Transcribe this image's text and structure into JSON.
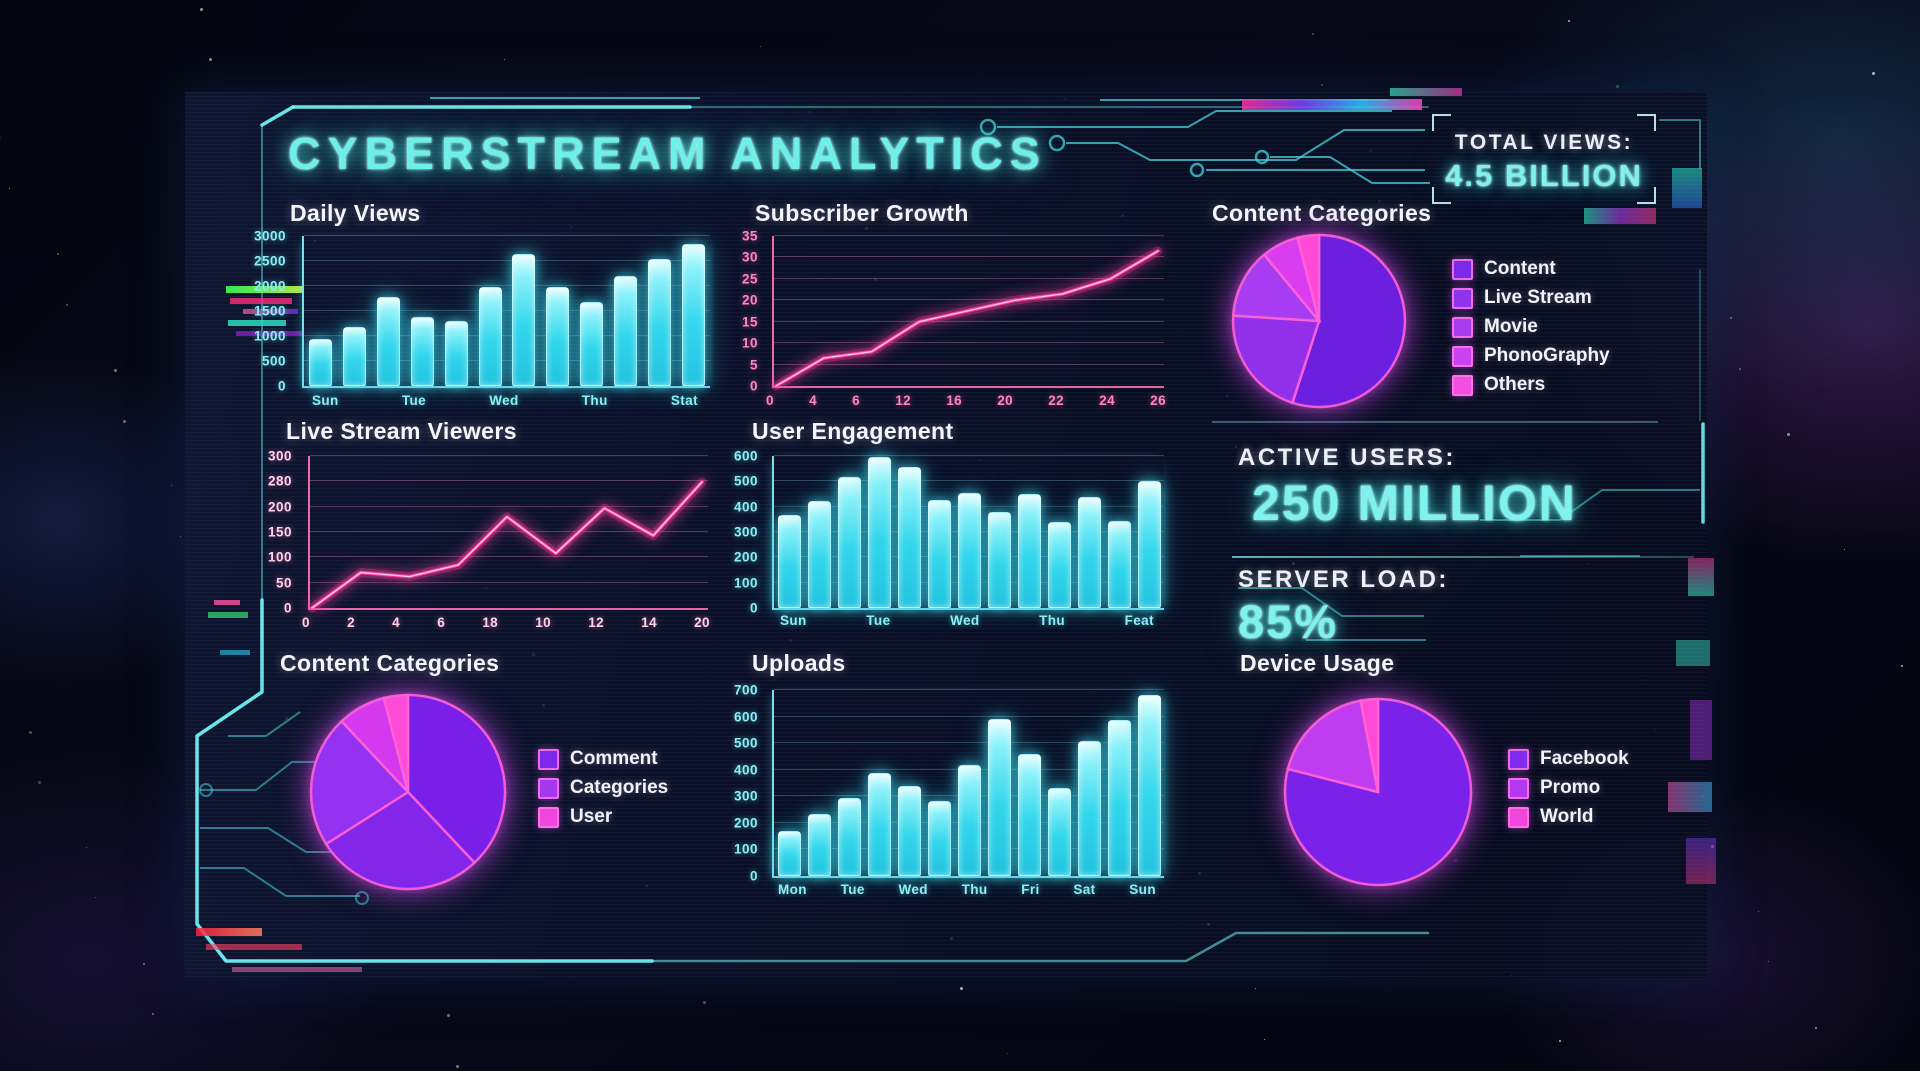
{
  "title": "CYBERSTREAM ANALYTICS",
  "stats": {
    "total_views_label": "TOTAL VIEWS:",
    "total_views_value": "4.5 BILLION",
    "active_users_label": "ACTIVE USERS:",
    "active_users_value": "250 MILLION",
    "server_load_label": "SERVER LOAD:",
    "server_load_value": "85%"
  },
  "chart_data": [
    {
      "id": "daily_views",
      "type": "bar",
      "title": "Daily Views",
      "ylim": [
        0,
        3000
      ],
      "yticks": [
        0,
        500,
        1000,
        1500,
        2000,
        2500,
        3000
      ],
      "xticks": [
        "Sun",
        "Tue",
        "Wed",
        "Thu",
        "Stat"
      ],
      "values": [
        900,
        1150,
        1750,
        1350,
        1250,
        1950,
        2600,
        1950,
        1650,
        2150,
        2500,
        2800
      ],
      "bar_color": "#33d7ec",
      "label_style": "cyan-lab",
      "axis": "cyan",
      "grid": true
    },
    {
      "id": "subscriber_growth",
      "type": "line",
      "title": "Subscriber Growth",
      "ylim": [
        0,
        35
      ],
      "yticks": [
        0,
        5,
        10,
        15,
        20,
        25,
        30,
        35
      ],
      "xticks": [
        "0",
        "4",
        "6",
        "12",
        "16",
        "20",
        "22",
        "24",
        "26"
      ],
      "values": [
        0,
        6.5,
        8,
        15,
        17.5,
        20,
        21.5,
        25,
        31.5
      ],
      "line_color": "#ff3d9e",
      "label_style": "pink-lab",
      "axis": "pink",
      "grid": true
    },
    {
      "id": "content_categories_top",
      "type": "pie",
      "title": "Content Categories",
      "slices": [
        {
          "value": 55,
          "color": "#6d1fe0"
        },
        {
          "value": 21,
          "color": "#9130e8"
        },
        {
          "value": 13,
          "color": "#a83cf0"
        },
        {
          "value": 7,
          "color": "#d83ef0"
        },
        {
          "value": 4,
          "color": "#ff49d8"
        }
      ],
      "legend": [
        {
          "label": "Content",
          "color": "#7b2ae8"
        },
        {
          "label": "Live Stream",
          "color": "#8f32ec"
        },
        {
          "label": "Movie",
          "color": "#a83cf0"
        },
        {
          "label": "PhonoGraphy",
          "color": "#c944f0"
        },
        {
          "label": "Others",
          "color": "#f24fe0"
        }
      ]
    },
    {
      "id": "live_stream_viewers",
      "type": "line",
      "title": "Live Stream Viewers",
      "ylim": [
        0,
        300
      ],
      "yticks": [
        0,
        50,
        100,
        150,
        200,
        280,
        300
      ],
      "xticks": [
        "0",
        "2",
        "4",
        "6",
        "18",
        "10",
        "12",
        "14",
        "20"
      ],
      "values": [
        0,
        70,
        62,
        85,
        180,
        108,
        197,
        143,
        278
      ],
      "line_color": "#ff3d9e",
      "label_style": "pinkwhite-lab",
      "axis": "pink",
      "grid": true
    },
    {
      "id": "user_engagement",
      "type": "bar",
      "title": "User Engagement",
      "ylim": [
        0,
        600
      ],
      "yticks": [
        0,
        100,
        200,
        300,
        400,
        500,
        600
      ],
      "xticks": [
        "Sun",
        "Tue",
        "Wed",
        "Thu",
        "Feat"
      ],
      "values": [
        360,
        415,
        510,
        590,
        550,
        418,
        445,
        370,
        443,
        330,
        432,
        335,
        495
      ],
      "bar_color": "#33d7ec",
      "label_style": "cyan-lab",
      "axis": "cyan",
      "grid": true
    },
    {
      "id": "content_categories_bottom",
      "type": "pie",
      "title": "Content Categories",
      "slices": [
        {
          "value": 38,
          "color": "#7a1fe8"
        },
        {
          "value": 28,
          "color": "#8326ea"
        },
        {
          "value": 22,
          "color": "#9531f0"
        },
        {
          "value": 8,
          "color": "#d439ee"
        },
        {
          "value": 4,
          "color": "#ff4bd8"
        }
      ],
      "legend": [
        {
          "label": "Comment",
          "color": "#7f28ec"
        },
        {
          "label": "Categories",
          "color": "#a438f0"
        },
        {
          "label": "User",
          "color": "#ef46e0"
        }
      ]
    },
    {
      "id": "uploads",
      "type": "bar",
      "title": "Uploads",
      "ylim": [
        0,
        700
      ],
      "yticks": [
        0,
        100,
        200,
        300,
        400,
        500,
        600,
        700
      ],
      "xticks": [
        "Mon",
        "Tue",
        "Wed",
        "Thu",
        "Fri",
        "Sat",
        "Sun"
      ],
      "values": [
        160,
        225,
        285,
        380,
        330,
        275,
        410,
        585,
        450,
        325,
        500,
        580,
        675
      ],
      "bar_color": "#33d7ec",
      "label_style": "cyan-lab",
      "axis": "cyan",
      "grid": true
    },
    {
      "id": "device_usage",
      "type": "pie",
      "title": "Device Usage",
      "slices": [
        {
          "value": 79,
          "color": "#7a22ea"
        },
        {
          "value": 18,
          "color": "#c03cf0"
        },
        {
          "value": 3,
          "color": "#ff49d8"
        }
      ],
      "legend": [
        {
          "label": "Facebook",
          "color": "#7f2aec"
        },
        {
          "label": "Promo",
          "color": "#b438f0"
        },
        {
          "label": "World",
          "color": "#f046dd"
        }
      ]
    }
  ]
}
